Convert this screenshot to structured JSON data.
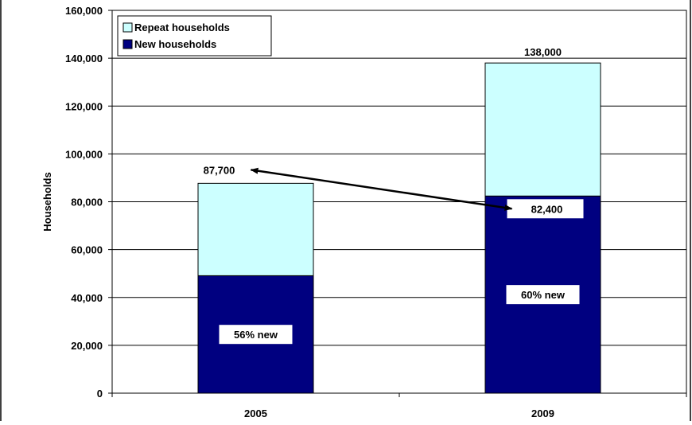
{
  "chart_data": {
    "type": "bar",
    "stacked": true,
    "categories": [
      "2005",
      "2009"
    ],
    "series": [
      {
        "name": "New households",
        "values": [
          49100,
          82400
        ],
        "color": "#000080"
      },
      {
        "name": "Repeat households",
        "values": [
          38600,
          55600
        ],
        "color": "#ccffff"
      }
    ],
    "totals": [
      87700,
      138000
    ],
    "total_labels": [
      "87,700",
      "138,000"
    ],
    "share_labels": [
      "56% new",
      "60% new"
    ],
    "callout": {
      "from_label": "87,700",
      "to_label": "82,400",
      "arrow": "double-headed"
    },
    "title": "",
    "xlabel": "",
    "ylabel": "Households",
    "ylim": [
      0,
      160000
    ],
    "yticks": [
      0,
      20000,
      40000,
      60000,
      80000,
      100000,
      120000,
      140000,
      160000
    ],
    "ytick_labels": [
      "0",
      "20,000",
      "40,000",
      "60,000",
      "80,000",
      "100,000",
      "120,000",
      "140,000",
      "160,000"
    ],
    "grid": true,
    "legend": {
      "placement": "top-left",
      "entries": [
        "Repeat households",
        "New households"
      ]
    }
  }
}
